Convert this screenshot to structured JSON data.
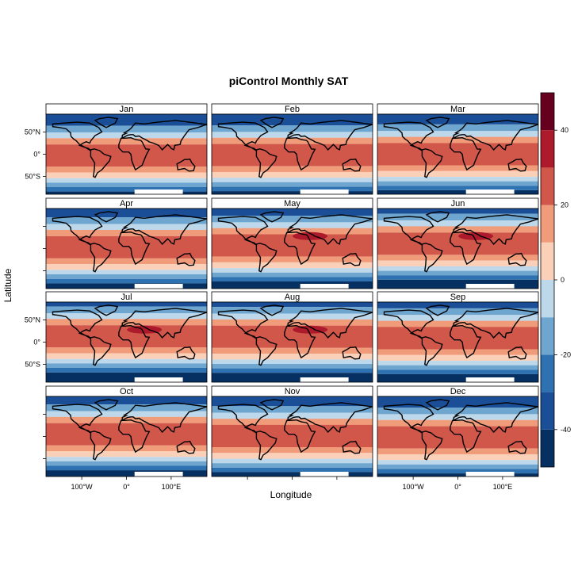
{
  "chart_data": {
    "type": "heatmap",
    "title": "piControl Monthly SAT",
    "xlabel": "Longitude",
    "ylabel": "Latitude",
    "panels": [
      "Jan",
      "Feb",
      "Mar",
      "Apr",
      "May",
      "Jun",
      "Jul",
      "Aug",
      "Sep",
      "Oct",
      "Nov",
      "Dec"
    ],
    "layout": "4 rows x 3 columns",
    "x_ticks": [
      "100°W",
      "0°",
      "100°E"
    ],
    "y_ticks": [
      "50°N",
      "0°",
      "50°S"
    ],
    "colorbar": {
      "range": [
        -50,
        50
      ],
      "breaks": [
        -50,
        -40,
        -30,
        -20,
        -10,
        0,
        10,
        20,
        30,
        40,
        50
      ],
      "tick_labels": [
        "-40",
        "-20",
        "0",
        "20",
        "40"
      ],
      "tick_values": [
        -40,
        -20,
        0,
        20,
        40
      ],
      "colors": [
        "#053061",
        "#1a4e96",
        "#2e72b1",
        "#6ea6cf",
        "#bcd8ea",
        "#fbd0b9",
        "#f09c7b",
        "#d1574a",
        "#ad1a2b",
        "#67001f"
      ]
    },
    "grid": false,
    "legend_position": "right"
  }
}
